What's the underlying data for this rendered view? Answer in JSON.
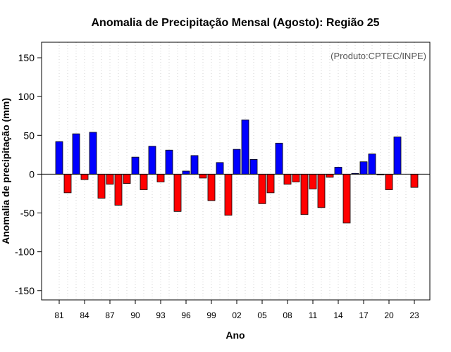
{
  "chart_data": {
    "type": "bar",
    "title": "Anomalia de Precipitação Mensal (Agosto): Região 25",
    "xlabel": "Ano",
    "ylabel": "Anomalia de precipitação (mm)",
    "credit": "(Produto:CPTEC/INPE)",
    "ylim": [
      -162,
      170
    ],
    "yticks": [
      -150,
      -100,
      -50,
      0,
      50,
      100,
      150
    ],
    "grid": "vertical-dotted",
    "years": [
      1981,
      1982,
      1983,
      1984,
      1985,
      1986,
      1987,
      1988,
      1989,
      1990,
      1991,
      1992,
      1993,
      1994,
      1995,
      1996,
      1997,
      1998,
      1999,
      2000,
      2001,
      2002,
      2003,
      2004,
      2005,
      2006,
      2007,
      2008,
      2009,
      2010,
      2011,
      2012,
      2013,
      2014,
      2015,
      2016,
      2017,
      2018,
      2019,
      2020,
      2021,
      2022,
      2023
    ],
    "values": [
      42,
      -24,
      52,
      -7,
      54,
      -31,
      -13,
      -40,
      -12,
      22,
      -20,
      36,
      -10,
      31,
      -48,
      4,
      24,
      -5,
      -34,
      15,
      -53,
      32,
      70,
      19,
      -38,
      -24,
      40,
      -13,
      -10,
      -52,
      -19,
      -43,
      -4,
      9,
      -63,
      1,
      16,
      26,
      -1,
      -20,
      48,
      0,
      -17
    ],
    "xticks": [
      "81",
      "84",
      "87",
      "90",
      "93",
      "96",
      "99",
      "02",
      "05",
      "08",
      "11",
      "14",
      "17",
      "20",
      "23"
    ],
    "colors": {
      "positive": "#0000ff",
      "negative": "#ff0000",
      "outline": "#000000",
      "grid": "#d3d3d3"
    }
  }
}
